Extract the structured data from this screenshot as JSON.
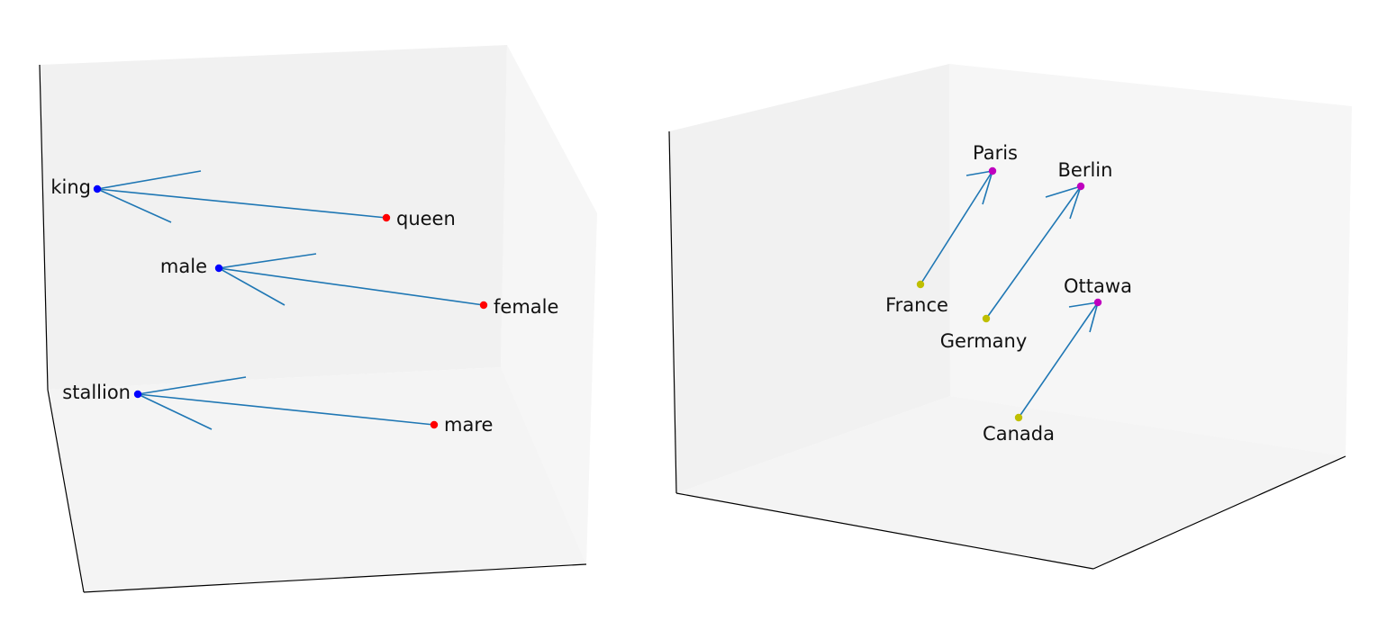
{
  "colors": {
    "pane_back": "#f1f1f1",
    "pane_side": "#f6f6f6",
    "pane_floor": "#f4f4f4",
    "axis_line": "#000000",
    "arrow": "#1f77b4",
    "word_a": "#0000ff",
    "word_b": "#ff0000",
    "country": "#bfbf00",
    "capital": "#bf00bf"
  },
  "chart_data": [
    {
      "type": "scatter",
      "title": "",
      "grid": false,
      "series": [
        {
          "color": "#0000ff",
          "points": [
            {
              "id": "king",
              "label": "king"
            },
            {
              "id": "male",
              "label": "male"
            },
            {
              "id": "stallion",
              "label": "stallion"
            }
          ]
        },
        {
          "color": "#ff0000",
          "points": [
            {
              "id": "queen",
              "label": "queen"
            },
            {
              "id": "female",
              "label": "female"
            },
            {
              "id": "mare",
              "label": "mare"
            }
          ]
        }
      ],
      "arrows": [
        {
          "from": "king",
          "to": "queen"
        },
        {
          "from": "male",
          "to": "female"
        },
        {
          "from": "stallion",
          "to": "mare"
        }
      ]
    },
    {
      "type": "scatter",
      "title": "",
      "grid": false,
      "series": [
        {
          "color": "#bfbf00",
          "points": [
            {
              "id": "france",
              "label": "France"
            },
            {
              "id": "germany",
              "label": "Germany"
            },
            {
              "id": "canada",
              "label": "Canada"
            }
          ]
        },
        {
          "color": "#bf00bf",
          "points": [
            {
              "id": "paris",
              "label": "Paris"
            },
            {
              "id": "berlin",
              "label": "Berlin"
            },
            {
              "id": "ottawa",
              "label": "Ottawa"
            }
          ]
        }
      ],
      "arrows": [
        {
          "from": "france",
          "to": "paris"
        },
        {
          "from": "germany",
          "to": "berlin"
        },
        {
          "from": "canada",
          "to": "ottawa"
        }
      ]
    }
  ]
}
